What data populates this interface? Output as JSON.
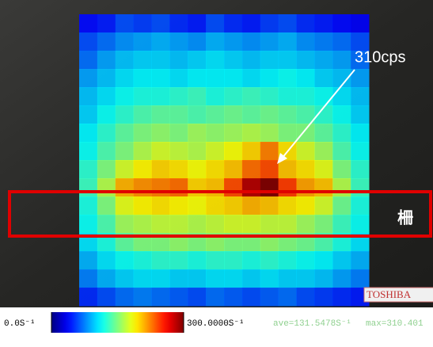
{
  "chart_data": {
    "type": "heatmap",
    "colormap": "jet",
    "values": [
      [
        40,
        45,
        60,
        55,
        60,
        50,
        45,
        60,
        50,
        45,
        55,
        60,
        50,
        45,
        40,
        35
      ],
      [
        60,
        70,
        80,
        85,
        90,
        85,
        80,
        90,
        85,
        80,
        85,
        90,
        80,
        75,
        70,
        60
      ],
      [
        70,
        85,
        95,
        100,
        100,
        95,
        100,
        105,
        100,
        95,
        100,
        100,
        95,
        90,
        85,
        70
      ],
      [
        85,
        95,
        105,
        110,
        110,
        105,
        110,
        110,
        110,
        105,
        110,
        115,
        110,
        100,
        95,
        85
      ],
      [
        95,
        105,
        115,
        120,
        120,
        125,
        130,
        120,
        125,
        130,
        125,
        120,
        120,
        115,
        105,
        95
      ],
      [
        100,
        115,
        125,
        135,
        140,
        140,
        135,
        140,
        145,
        140,
        145,
        140,
        135,
        125,
        115,
        100
      ],
      [
        110,
        125,
        140,
        150,
        155,
        150,
        160,
        155,
        160,
        165,
        160,
        150,
        150,
        140,
        125,
        110
      ],
      [
        115,
        135,
        150,
        165,
        175,
        170,
        165,
        175,
        185,
        200,
        225,
        195,
        175,
        160,
        135,
        115
      ],
      [
        125,
        150,
        175,
        190,
        200,
        195,
        185,
        195,
        205,
        230,
        240,
        205,
        195,
        180,
        150,
        125
      ],
      [
        130,
        165,
        210,
        220,
        225,
        230,
        200,
        205,
        240,
        285,
        300,
        245,
        215,
        205,
        165,
        130
      ],
      [
        120,
        150,
        180,
        190,
        195,
        190,
        185,
        195,
        200,
        210,
        205,
        195,
        190,
        175,
        145,
        120
      ],
      [
        115,
        135,
        160,
        165,
        170,
        170,
        165,
        170,
        175,
        175,
        170,
        170,
        160,
        150,
        130,
        115
      ],
      [
        105,
        120,
        140,
        150,
        150,
        155,
        150,
        155,
        150,
        150,
        155,
        150,
        145,
        135,
        120,
        105
      ],
      [
        90,
        105,
        115,
        120,
        125,
        125,
        120,
        125,
        125,
        120,
        125,
        120,
        115,
        110,
        100,
        90
      ],
      [
        75,
        90,
        100,
        105,
        105,
        100,
        100,
        105,
        105,
        100,
        105,
        100,
        100,
        95,
        85,
        75
      ],
      [
        50,
        60,
        70,
        75,
        70,
        65,
        60,
        70,
        65,
        60,
        65,
        70,
        60,
        55,
        50,
        45
      ]
    ],
    "zlim": [
      0,
      300
    ],
    "colorbar_ticks": [
      {
        "value": 0,
        "label": "0.0S⁻¹"
      },
      {
        "value": 300,
        "label": "300.0000S⁻¹"
      }
    ],
    "annotations": {
      "peak": "310cps",
      "fence": "柵",
      "average": "ave=131.5478S⁻¹",
      "maximum": "max=310.401",
      "brand": "TOSHIBA"
    }
  }
}
